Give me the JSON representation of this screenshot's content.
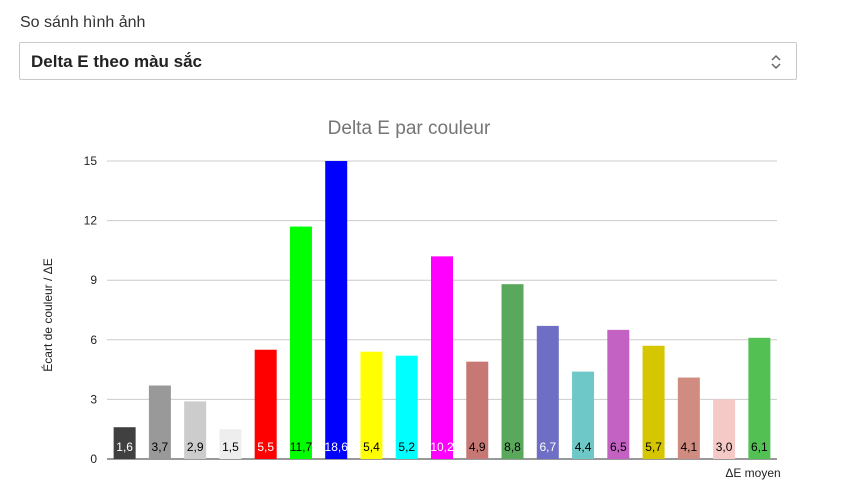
{
  "header": {
    "label": "So sánh hình ảnh"
  },
  "selector": {
    "value": "Delta E theo màu sắc",
    "icon": "chevron-updown-icon"
  },
  "chart_data": {
    "type": "bar",
    "title": "Delta E par couleur",
    "xlabel": "ΔE moyen",
    "ylabel": "Écart de couleur / ΔE",
    "ylim": [
      0,
      15
    ],
    "yticks": [
      0,
      3,
      6,
      9,
      12,
      15
    ],
    "grid": true,
    "legend": "none",
    "categories": [
      "",
      "",
      "",
      "",
      "",
      "",
      "",
      "",
      "",
      "",
      "",
      "",
      "",
      "",
      "",
      "",
      "",
      "",
      ""
    ],
    "values": [
      1.6,
      3.7,
      2.9,
      1.5,
      5.5,
      11.7,
      18.6,
      5.4,
      5.2,
      10.2,
      4.9,
      8.8,
      6.7,
      4.4,
      6.5,
      5.7,
      4.1,
      3.0,
      6.1
    ],
    "data_labels": [
      "1,6",
      "3,7",
      "2,9",
      "1,5",
      "5,5",
      "11,7",
      "18,6",
      "5,4",
      "5,2",
      "10,2",
      "4,9",
      "8,8",
      "6,7",
      "4,4",
      "6,5",
      "5,7",
      "4,1",
      "3,0",
      "6,1"
    ],
    "colors": [
      "#404040",
      "#999999",
      "#cccccc",
      "#eeeeee",
      "#ff0000",
      "#00ff00",
      "#0000ff",
      "#ffff00",
      "#00ffff",
      "#ff00ff",
      "#c87874",
      "#59a85c",
      "#6e6ec4",
      "#6ec8c8",
      "#c462c4",
      "#d6c600",
      "#d08c80",
      "#f4c9c6",
      "#52c052"
    ],
    "label_colors": [
      "#ffffff",
      "#000000",
      "#000000",
      "#000000",
      "#ffffff",
      "#000000",
      "#ffffff",
      "#000000",
      "#000000",
      "#ffffff",
      "#000000",
      "#000000",
      "#ffffff",
      "#000000",
      "#000000",
      "#000000",
      "#000000",
      "#000000",
      "#000000"
    ]
  }
}
